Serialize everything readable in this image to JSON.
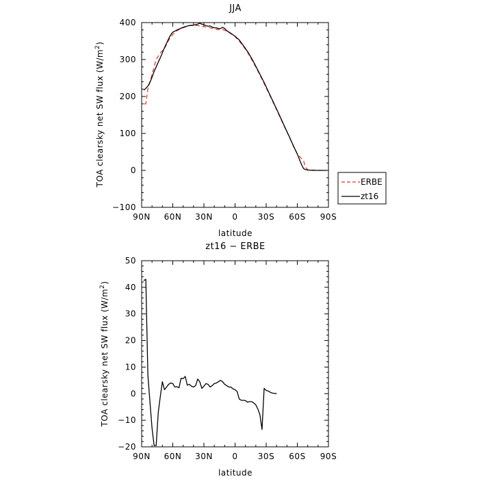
{
  "chart_data": [
    {
      "type": "line",
      "title": "JJA",
      "xlabel": "latitude",
      "ylabel": "TOA clearsky net SW flux (W/m",
      "ylabel_sup": "2",
      "ylabel_end": ")",
      "xlim": [
        90,
        -90
      ],
      "ylim": [
        -100,
        400
      ],
      "xticks": [
        {
          "value": 90,
          "label": "90N"
        },
        {
          "value": 60,
          "label": "60N"
        },
        {
          "value": 30,
          "label": "30N"
        },
        {
          "value": 0,
          "label": "0"
        },
        {
          "value": -30,
          "label": "30S"
        },
        {
          "value": -60,
          "label": "60S"
        },
        {
          "value": -90,
          "label": "90S"
        }
      ],
      "yticks": [
        -100,
        0,
        100,
        200,
        300,
        400
      ],
      "legend_position": "right",
      "series": [
        {
          "name": "ERBE",
          "color": "#e8322c",
          "dash": "dashed",
          "points": [
            [
              87.5,
              180
            ],
            [
              86,
              180
            ],
            [
              84,
              220
            ],
            [
              80,
              260
            ],
            [
              76,
              300
            ],
            [
              72,
              318
            ],
            [
              68,
              330
            ],
            [
              64,
              352
            ],
            [
              60,
              368
            ],
            [
              56,
              378
            ],
            [
              52,
              384
            ],
            [
              48,
              388
            ],
            [
              44,
              392
            ],
            [
              40,
              392
            ],
            [
              36,
              392
            ],
            [
              32,
              390
            ],
            [
              28,
              388
            ],
            [
              24,
              386
            ],
            [
              20,
              383
            ],
            [
              16,
              381
            ],
            [
              12,
              381
            ],
            [
              8,
              377
            ],
            [
              4,
              370
            ],
            [
              0,
              362
            ],
            [
              -4,
              350
            ],
            [
              -8,
              336
            ],
            [
              -12,
              320
            ],
            [
              -16,
              300
            ],
            [
              -20,
              280
            ],
            [
              -24,
              258
            ],
            [
              -28,
              235
            ],
            [
              -32,
              212
            ],
            [
              -36,
              188
            ],
            [
              -40,
              164
            ],
            [
              -44,
              140
            ],
            [
              -48,
              116
            ],
            [
              -52,
              92
            ],
            [
              -56,
              67
            ],
            [
              -60,
              44
            ],
            [
              -64,
              32
            ],
            [
              -66,
              26
            ],
            [
              -68,
              8
            ],
            [
              -70,
              2
            ],
            [
              -75,
              1
            ],
            [
              -80,
              0
            ],
            [
              -85,
              0
            ],
            [
              -88,
              0
            ]
          ]
        },
        {
          "name": "zt16",
          "color": "#000000",
          "dash": "solid",
          "points": [
            [
              88,
              217
            ],
            [
              86,
              222
            ],
            [
              84,
              228
            ],
            [
              82,
              238
            ],
            [
              80,
              252
            ],
            [
              78,
              268
            ],
            [
              76,
              280
            ],
            [
              74,
              293
            ],
            [
              72,
              305
            ],
            [
              70,
              318
            ],
            [
              68,
              332
            ],
            [
              66,
              344
            ],
            [
              64,
              356
            ],
            [
              62,
              367
            ],
            [
              60,
              374
            ],
            [
              56,
              380
            ],
            [
              52,
              385
            ],
            [
              48,
              389
            ],
            [
              44,
              392
            ],
            [
              40,
              393
            ],
            [
              36,
              396
            ],
            [
              34,
              398
            ],
            [
              32,
              396
            ],
            [
              30,
              394
            ],
            [
              28,
              392
            ],
            [
              26,
              390
            ],
            [
              24,
              391
            ],
            [
              22,
              388
            ],
            [
              20,
              386
            ],
            [
              18,
              386
            ],
            [
              16,
              384
            ],
            [
              14,
              384
            ],
            [
              12,
              387
            ],
            [
              10,
              384
            ],
            [
              8,
              378
            ],
            [
              4,
              371
            ],
            [
              0,
              363
            ],
            [
              -4,
              353
            ],
            [
              -8,
              338
            ],
            [
              -12,
              322
            ],
            [
              -16,
              303
            ],
            [
              -20,
              282
            ],
            [
              -24,
              260
            ],
            [
              -28,
              238
            ],
            [
              -32,
              214
            ],
            [
              -36,
              190
            ],
            [
              -40,
              166
            ],
            [
              -44,
              142
            ],
            [
              -48,
              117
            ],
            [
              -52,
              93
            ],
            [
              -56,
              68
            ],
            [
              -60,
              44
            ],
            [
              -62,
              30
            ],
            [
              -64,
              16
            ],
            [
              -66,
              5
            ],
            [
              -68,
              2
            ],
            [
              -70,
              1
            ],
            [
              -75,
              0
            ],
            [
              -80,
              0
            ],
            [
              -85,
              0
            ],
            [
              -88,
              0
            ]
          ]
        }
      ]
    },
    {
      "type": "line",
      "title": "zt16 − ERBE",
      "xlabel": "latitude",
      "ylabel": "TOA clearsky net SW flux (W/m",
      "ylabel_sup": "2",
      "ylabel_end": ")",
      "xlim": [
        90,
        -90
      ],
      "ylim": [
        -20,
        50
      ],
      "xticks": [
        {
          "value": 90,
          "label": "90N"
        },
        {
          "value": 60,
          "label": "60N"
        },
        {
          "value": 30,
          "label": "30N"
        },
        {
          "value": 0,
          "label": "0"
        },
        {
          "value": -30,
          "label": "30S"
        },
        {
          "value": -60,
          "label": "60S"
        },
        {
          "value": -90,
          "label": "90S"
        }
      ],
      "yticks": [
        -20,
        -10,
        0,
        10,
        20,
        30,
        40,
        50
      ],
      "series": [
        {
          "color": "#000000",
          "dash": "solid",
          "points": [
            [
              88,
              42.5
            ],
            [
              86,
              43
            ],
            [
              84,
              7
            ],
            [
              82,
              -3
            ],
            [
              80,
              -13
            ],
            [
              78,
              -19.5
            ],
            [
              76,
              -19.5
            ],
            [
              74,
              -7
            ],
            [
              72,
              -1
            ],
            [
              70,
              4.5
            ],
            [
              68,
              1.5
            ],
            [
              66,
              2.5
            ],
            [
              64,
              3.5
            ],
            [
              62,
              4
            ],
            [
              60,
              3.8
            ],
            [
              58,
              2.5
            ],
            [
              56,
              2.6
            ],
            [
              54,
              2.2
            ],
            [
              52,
              5.8
            ],
            [
              50,
              5.6
            ],
            [
              48,
              6.5
            ],
            [
              46,
              3.2
            ],
            [
              44,
              3.5
            ],
            [
              42,
              2.8
            ],
            [
              40,
              2.5
            ],
            [
              38,
              3
            ],
            [
              36,
              5.5
            ],
            [
              34,
              4.5
            ],
            [
              32,
              2
            ],
            [
              30,
              2.8
            ],
            [
              28,
              3.8
            ],
            [
              26,
              3.5
            ],
            [
              24,
              2.5
            ],
            [
              22,
              3
            ],
            [
              20,
              3.8
            ],
            [
              18,
              4
            ],
            [
              16,
              4.5
            ],
            [
              14,
              5
            ],
            [
              12,
              4.5
            ],
            [
              10,
              3.5
            ],
            [
              8,
              3
            ],
            [
              6,
              2.5
            ],
            [
              4,
              2.5
            ],
            [
              2,
              1.8
            ],
            [
              0,
              1.5
            ],
            [
              -2,
              0.8
            ],
            [
              -4,
              -2
            ],
            [
              -6,
              -2.5
            ],
            [
              -8,
              -2.5
            ],
            [
              -10,
              -2.6
            ],
            [
              -12,
              -3.2
            ],
            [
              -14,
              -3
            ],
            [
              -16,
              -3
            ],
            [
              -18,
              -3.5
            ],
            [
              -20,
              -4.2
            ],
            [
              -22,
              -5.8
            ],
            [
              -24,
              -8
            ],
            [
              -26,
              -13.5
            ],
            [
              -28,
              2
            ],
            [
              -30,
              1.2
            ],
            [
              -32,
              1
            ],
            [
              -34,
              0.5
            ],
            [
              -36,
              0.2
            ],
            [
              -38,
              0.1
            ],
            [
              -40,
              0
            ]
          ]
        }
      ]
    }
  ]
}
